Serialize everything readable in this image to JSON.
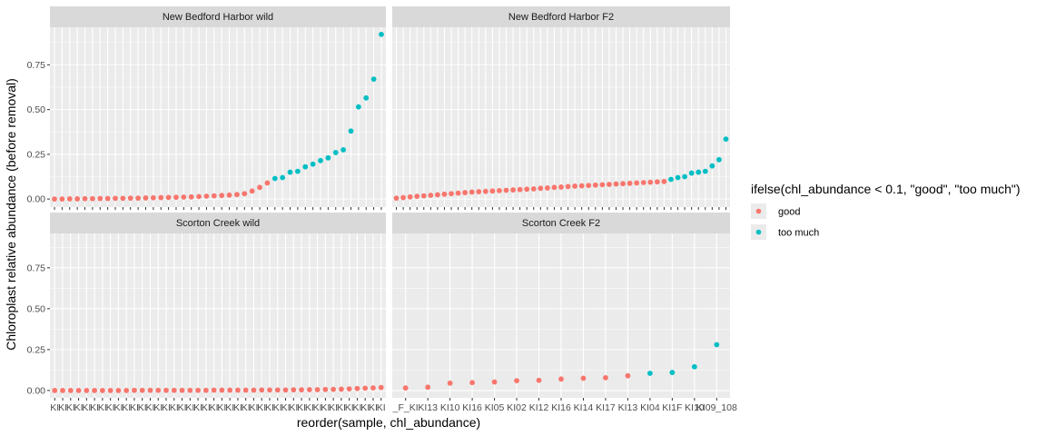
{
  "chart_data": {
    "type": "scatter",
    "xlabel": "reorder(sample, chl_abundance)",
    "ylabel": "Chloroplast relative abundance (before removal)",
    "ylim": [
      -0.045,
      0.96
    ],
    "yticks": [
      0.0,
      0.25,
      0.5,
      0.75
    ],
    "ytick_labels": [
      "0.00",
      "0.25",
      "0.50",
      "0.75"
    ],
    "grid": true,
    "legend": {
      "title": "ifelse(chl_abundance < 0.1, \"good\", \"too much\")",
      "placement": "right",
      "entries": [
        {
          "label": "good",
          "color": "#F8766D"
        },
        {
          "label": "too much",
          "color": "#00BFC4"
        }
      ]
    },
    "colors": {
      "good": "#F8766D",
      "too much": "#00BFC4"
    },
    "panels": [
      {
        "title": "New Bedford Harbor wild",
        "x_tick_label": "KI",
        "values": [
          0.0,
          0.0,
          0.001,
          0.001,
          0.002,
          0.002,
          0.003,
          0.003,
          0.004,
          0.004,
          0.005,
          0.005,
          0.006,
          0.007,
          0.008,
          0.009,
          0.01,
          0.011,
          0.012,
          0.014,
          0.016,
          0.018,
          0.02,
          0.022,
          0.025,
          0.03,
          0.045,
          0.065,
          0.09,
          0.115,
          0.12,
          0.15,
          0.155,
          0.18,
          0.195,
          0.215,
          0.23,
          0.26,
          0.275,
          0.38,
          0.515,
          0.565,
          0.67,
          0.92
        ]
      },
      {
        "title": "New Bedford Harbor F2",
        "x_tick_label": "KI",
        "values": [
          0.005,
          0.008,
          0.012,
          0.015,
          0.018,
          0.021,
          0.024,
          0.027,
          0.03,
          0.033,
          0.036,
          0.039,
          0.041,
          0.043,
          0.045,
          0.047,
          0.049,
          0.051,
          0.053,
          0.055,
          0.057,
          0.06,
          0.062,
          0.065,
          0.067,
          0.07,
          0.072,
          0.074,
          0.076,
          0.078,
          0.08,
          0.082,
          0.084,
          0.086,
          0.088,
          0.09,
          0.092,
          0.094,
          0.096,
          0.098,
          0.11,
          0.12,
          0.125,
          0.145,
          0.15,
          0.155,
          0.185,
          0.22,
          0.335
        ]
      },
      {
        "title": "Scorton Creek wild",
        "x_tick_label": "KI",
        "values": [
          0.0,
          0.0,
          0.0,
          0.0,
          0.0,
          0.0,
          0.0,
          0.0,
          0.0,
          0.0,
          0.001,
          0.001,
          0.001,
          0.001,
          0.001,
          0.001,
          0.001,
          0.001,
          0.001,
          0.001,
          0.002,
          0.002,
          0.002,
          0.002,
          0.002,
          0.002,
          0.003,
          0.003,
          0.003,
          0.003,
          0.004,
          0.004,
          0.005,
          0.005,
          0.006,
          0.007,
          0.008,
          0.01,
          0.012,
          0.014,
          0.016,
          0.018
        ]
      },
      {
        "title": "Scorton Creek F2",
        "x_tick_labels": [
          "_F_KI",
          "KI13",
          "KI10",
          "KI16",
          "KI05",
          "KI02",
          "KI12",
          "KI16",
          "KI14",
          "KI17",
          "KI13",
          "KI04",
          "KI1F",
          "KI10",
          "KI09_108"
        ],
        "values": [
          0.015,
          0.02,
          0.045,
          0.048,
          0.052,
          0.06,
          0.062,
          0.07,
          0.075,
          0.078,
          0.09,
          0.105,
          0.11,
          0.145,
          0.28
        ]
      }
    ]
  }
}
